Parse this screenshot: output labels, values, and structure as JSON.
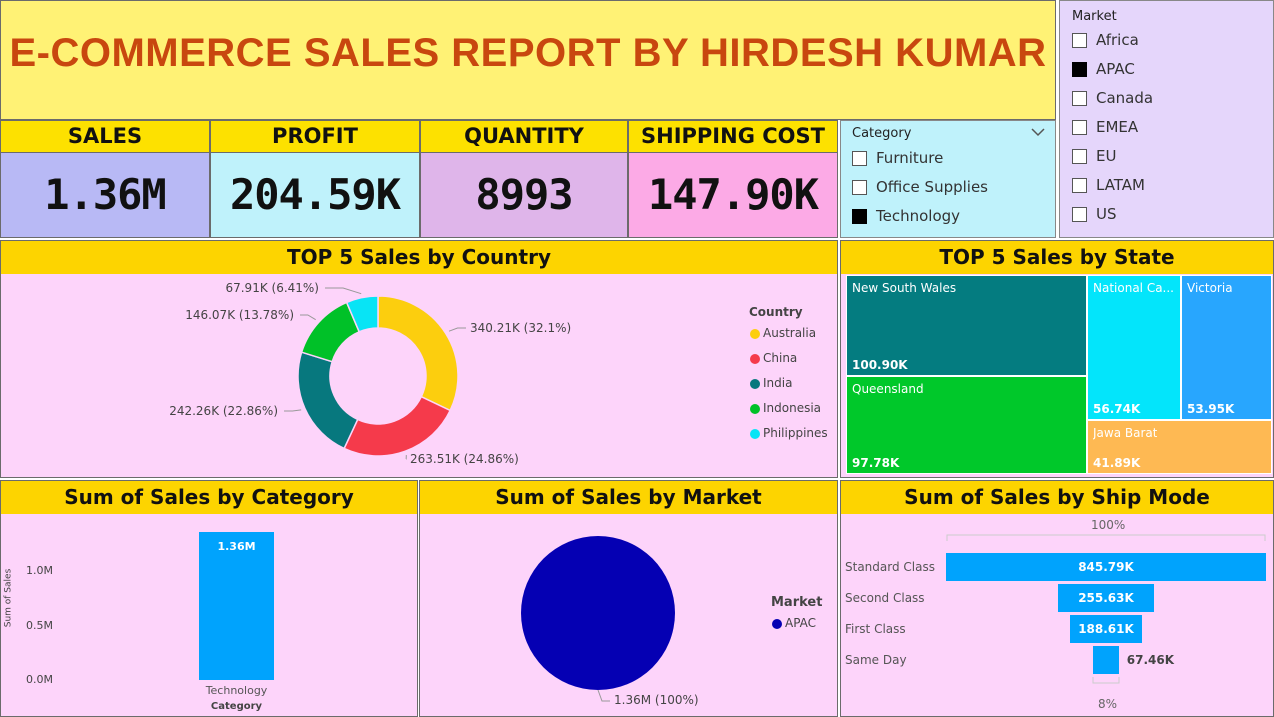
{
  "title": "E-COMMERCE SALES REPORT BY HIRDESH KUMAR",
  "kpis": [
    {
      "label": "SALES",
      "value": "1.36M",
      "color": "#b8b9f5"
    },
    {
      "label": "PROFIT",
      "value": "204.59K",
      "color": "#bff2fb"
    },
    {
      "label": "QUANTITY",
      "value": "8993",
      "color": "#dfb5ea"
    },
    {
      "label": "SHIPPING COST",
      "value": "147.90K",
      "color": "#fcaae6"
    }
  ],
  "category_slicer": {
    "title": "Category",
    "items": [
      {
        "label": "Furniture",
        "checked": false
      },
      {
        "label": "Office Supplies",
        "checked": false
      },
      {
        "label": "Technology",
        "checked": true
      }
    ]
  },
  "market_slicer": {
    "title": "Market",
    "items": [
      {
        "label": "Africa",
        "checked": false
      },
      {
        "label": "APAC",
        "checked": true
      },
      {
        "label": "Canada",
        "checked": false
      },
      {
        "label": "EMEA",
        "checked": false
      },
      {
        "label": "EU",
        "checked": false
      },
      {
        "label": "LATAM",
        "checked": false
      },
      {
        "label": "US",
        "checked": false
      }
    ]
  },
  "charts": {
    "country": {
      "title": "TOP 5 Sales by Country",
      "legend_title": "Country",
      "labels": [
        "340.21K (32.1%)",
        "263.51K (24.86%)",
        "242.26K (22.86%)",
        "146.07K (13.78%)",
        "67.91K (6.41%)"
      ]
    },
    "state": {
      "title": "TOP 5 Sales by State"
    },
    "category": {
      "title": "Sum of Sales by Category",
      "bar_label": "1.36M"
    },
    "market": {
      "title": "Sum of Sales by Market",
      "legend_title": "Market",
      "slice_label": "1.36M (100%)"
    },
    "shipmode": {
      "title": "Sum of Sales by Ship Mode",
      "top_label": "100%",
      "bottom_label": "8%"
    }
  },
  "chart_data": [
    {
      "type": "pie",
      "variant": "donut",
      "title": "TOP 5 Sales by Country",
      "legend_title": "Country",
      "legend_placement": "right",
      "categories": [
        "Australia",
        "China",
        "India",
        "Indonesia",
        "Philippines"
      ],
      "values": [
        340210,
        263510,
        242260,
        146070,
        67910
      ],
      "percents": [
        32.1,
        24.86,
        22.86,
        13.78,
        6.41
      ],
      "colors": [
        "#fcce0e",
        "#f53a4b",
        "#07787e",
        "#00c128",
        "#08e4f5"
      ]
    },
    {
      "type": "treemap",
      "title": "TOP 5 Sales by State",
      "categories": [
        "New South Wales",
        "Queensland",
        "National Ca...",
        "Victoria",
        "Jawa Barat"
      ],
      "values": [
        100900,
        97780,
        56740,
        53950,
        41890
      ],
      "value_labels": [
        "100.90K",
        "97.78K",
        "56.74K",
        "53.95K",
        "41.89K"
      ],
      "colors": [
        "#047c80",
        "#00c82a",
        "#03e5fb",
        "#28a6fe",
        "#feb953"
      ]
    },
    {
      "type": "bar",
      "title": "Sum of Sales by Category",
      "categories": [
        "Technology"
      ],
      "values": [
        1360000
      ],
      "value_labels": [
        "1.36M"
      ],
      "xlabel": "Category",
      "ylabel": "Sum of Sales",
      "yticks": [
        "0.0M",
        "0.5M",
        "1.0M"
      ],
      "ylim": [
        0,
        1400000
      ],
      "color": "#00a3fd"
    },
    {
      "type": "pie",
      "title": "Sum of Sales by Market",
      "legend_title": "Market",
      "legend_placement": "right",
      "categories": [
        "APAC"
      ],
      "values": [
        1360000
      ],
      "percents": [
        100
      ],
      "colors": [
        "#0500b3"
      ]
    },
    {
      "type": "funnel",
      "title": "Sum of Sales by Ship Mode",
      "categories": [
        "Standard Class",
        "Second Class",
        "First Class",
        "Same Day"
      ],
      "values": [
        845790,
        255630,
        188610,
        67460
      ],
      "value_labels": [
        "845.79K",
        "255.63K",
        "188.61K",
        "67.46K"
      ],
      "top_percent_label": "100%",
      "bottom_percent_label": "8%",
      "color": "#00a3fd"
    }
  ]
}
